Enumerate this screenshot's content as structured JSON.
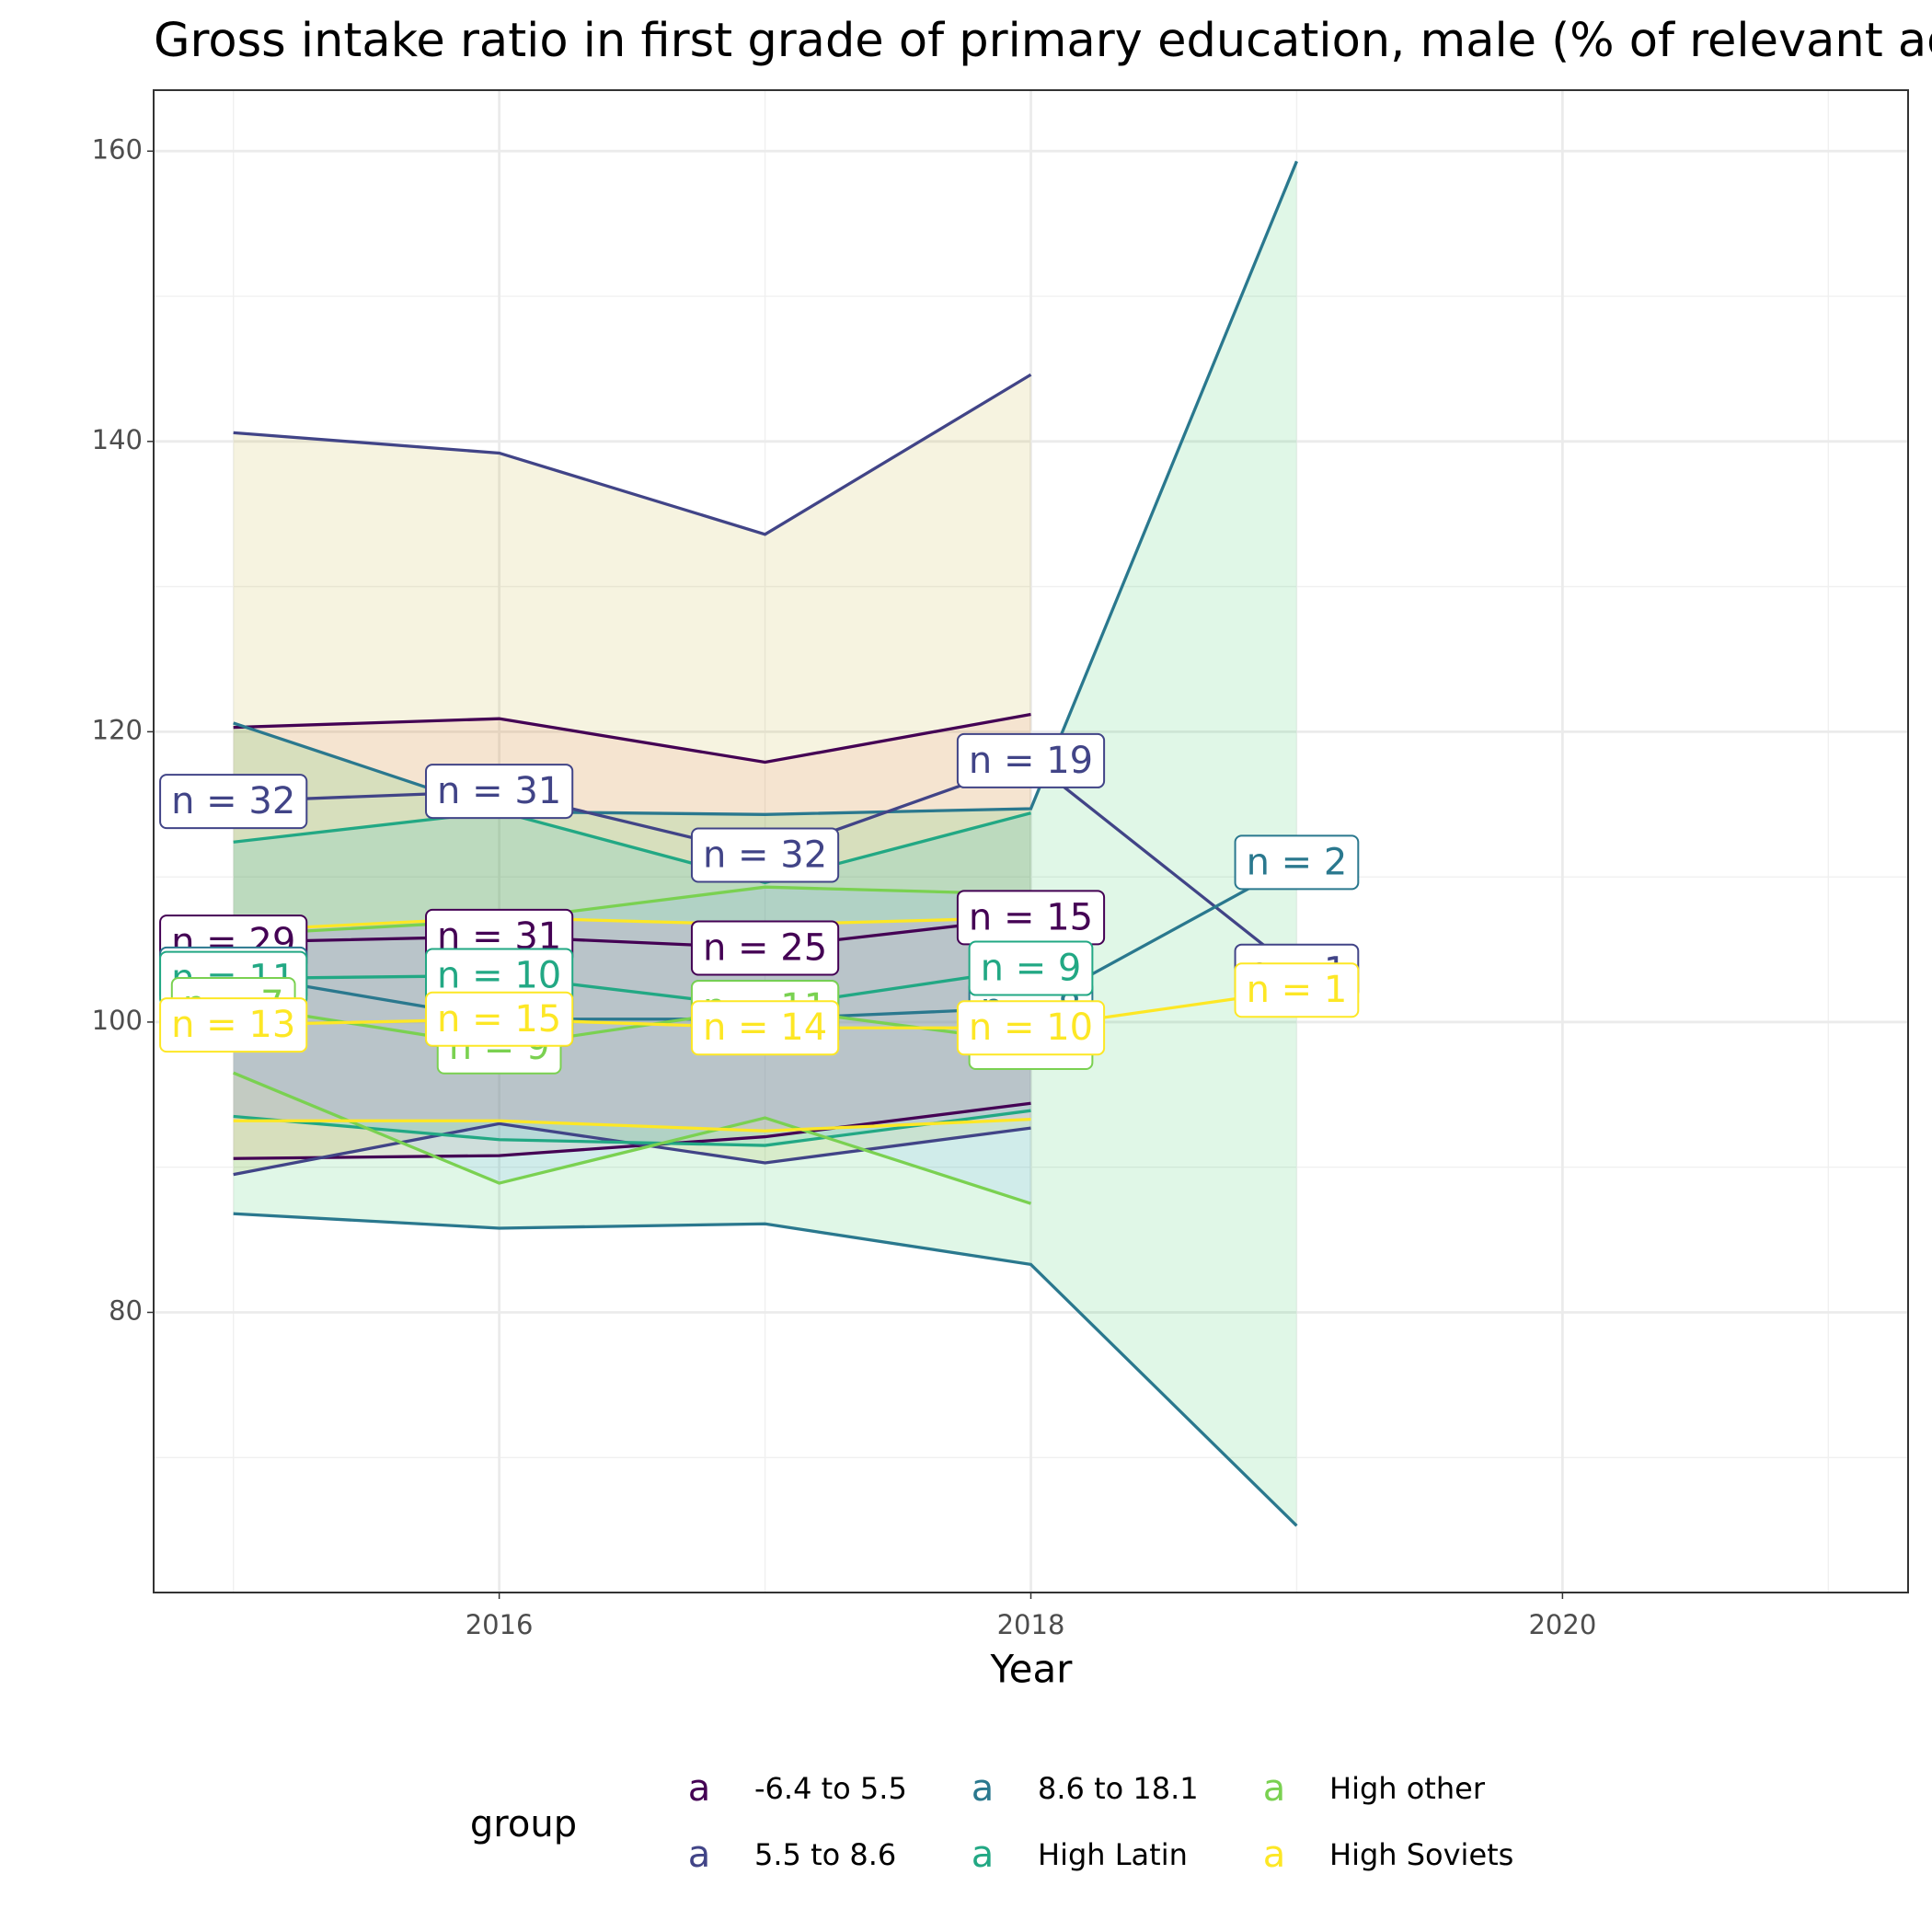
{
  "chart_data": {
    "type": "line",
    "title": "Gross intake ratio in first grade of primary education, male (% of relevant age group)",
    "x_label": "Year",
    "legend_title": "group",
    "legend_position": "bottom",
    "grid": true,
    "x": [
      2015,
      2016,
      2017,
      2018,
      2019
    ],
    "xlim": [
      2014.7,
      2021.3
    ],
    "xticks": [
      2016,
      2018,
      2020
    ],
    "xminor": [
      2015,
      2017,
      2019,
      2021
    ],
    "ylim": [
      60.7,
      164.2
    ],
    "yticks": [
      80,
      100,
      120,
      140,
      160
    ],
    "yminor": [
      70,
      90,
      110,
      130,
      150
    ],
    "series": [
      {
        "name": "-6.4 to 5.5",
        "color": "#440154",
        "fill": "#F8766D",
        "values": [
          105.5,
          105.9,
          105.1,
          107.2,
          null
        ],
        "upper": [
          120.3,
          120.9,
          117.9,
          121.2,
          null
        ],
        "lower": [
          90.6,
          90.8,
          92.1,
          94.4,
          null
        ],
        "labels": [
          "n = 29",
          "n = 31",
          "n = 25",
          "n = 15",
          null
        ]
      },
      {
        "name": "5.5 to 8.6",
        "color": "#414487",
        "fill": "#B79F00",
        "values": [
          115.2,
          115.9,
          111.5,
          118.0,
          103.5
        ],
        "upper": [
          140.6,
          139.2,
          133.6,
          144.6,
          null
        ],
        "lower": [
          89.5,
          93.0,
          90.3,
          92.7,
          null
        ],
        "labels": [
          "n = 32",
          "n = 31",
          "n = 32",
          "n = 19",
          "n = 1"
        ]
      },
      {
        "name": "8.6 to 18.1",
        "color": "#2A788E",
        "fill": "#00BA38",
        "values": [
          103.3,
          100.2,
          100.2,
          101.0,
          111.0
        ],
        "upper": [
          120.6,
          114.5,
          114.3,
          114.7,
          159.3
        ],
        "lower": [
          86.8,
          85.8,
          86.1,
          83.3,
          65.3
        ],
        "labels": [
          "n = 11",
          "n = 10",
          "n = 10",
          "n = 8",
          "n = 2"
        ]
      },
      {
        "name": "High Latin",
        "color": "#22A884",
        "fill": "#00BFC4",
        "values": [
          103.0,
          103.2,
          101.0,
          103.7,
          null
        ],
        "upper": [
          112.4,
          114.5,
          109.6,
          114.4,
          null
        ],
        "lower": [
          93.5,
          91.9,
          91.5,
          93.9,
          null
        ],
        "labels": [
          "n = 11",
          "n = 10",
          "n = 11",
          "n = 9",
          null
        ]
      },
      {
        "name": "High other",
        "color": "#7AD151",
        "fill": "#619CFF",
        "values": [
          101.2,
          98.3,
          101.0,
          98.6,
          null
        ],
        "upper": [
          106.0,
          107.0,
          109.3,
          108.8,
          null
        ],
        "lower": [
          96.5,
          88.9,
          93.4,
          87.5,
          null
        ],
        "labels": [
          "n = 7",
          "n = 9",
          "n = 11",
          "n = 7",
          null
        ]
      },
      {
        "name": "High Soviets",
        "color": "#FDE725",
        "fill": "#F564E3",
        "values": [
          99.8,
          100.2,
          99.6,
          99.6,
          102.2
        ],
        "upper": [
          106.3,
          107.2,
          106.7,
          107.2,
          null
        ],
        "lower": [
          93.2,
          93.2,
          92.5,
          93.3,
          null
        ],
        "labels": [
          "n = 13",
          "n = 15",
          "n = 14",
          "n = 10",
          "n = 1"
        ]
      }
    ]
  }
}
